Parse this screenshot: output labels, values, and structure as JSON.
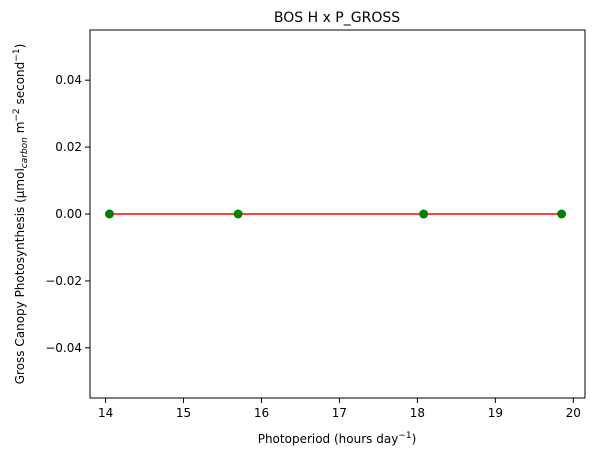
{
  "chart_data": {
    "type": "line",
    "title": "BOS H x P_GROSS",
    "xlabel": {
      "base": "Photoperiod (hours day",
      "sup": "−1",
      "end": ")"
    },
    "ylabel": {
      "part1": "Gross Canopy Photosynthesis (μmol",
      "sub": "carbon",
      "part2": " m",
      "sup1": "−2",
      "part3": " second",
      "sup2": "−1",
      "part4": ")"
    },
    "xlim": [
      13.8,
      20.15
    ],
    "ylim": [
      -0.055,
      0.055
    ],
    "xticks": [
      14,
      15,
      16,
      17,
      18,
      19,
      20
    ],
    "yticks": [
      -0.04,
      -0.02,
      0.0,
      0.02,
      0.04
    ],
    "xtick_labels": [
      "14",
      "15",
      "16",
      "17",
      "18",
      "19",
      "20"
    ],
    "ytick_labels": [
      "−0.04",
      "−0.02",
      "0.00",
      "0.02",
      "0.04"
    ],
    "grid": false,
    "series": [
      {
        "x": [
          14.05,
          15.7,
          18.08,
          19.85
        ],
        "y": [
          0,
          0,
          0,
          0
        ],
        "line_color": "#ff0000",
        "marker_color": "#008000"
      }
    ]
  }
}
